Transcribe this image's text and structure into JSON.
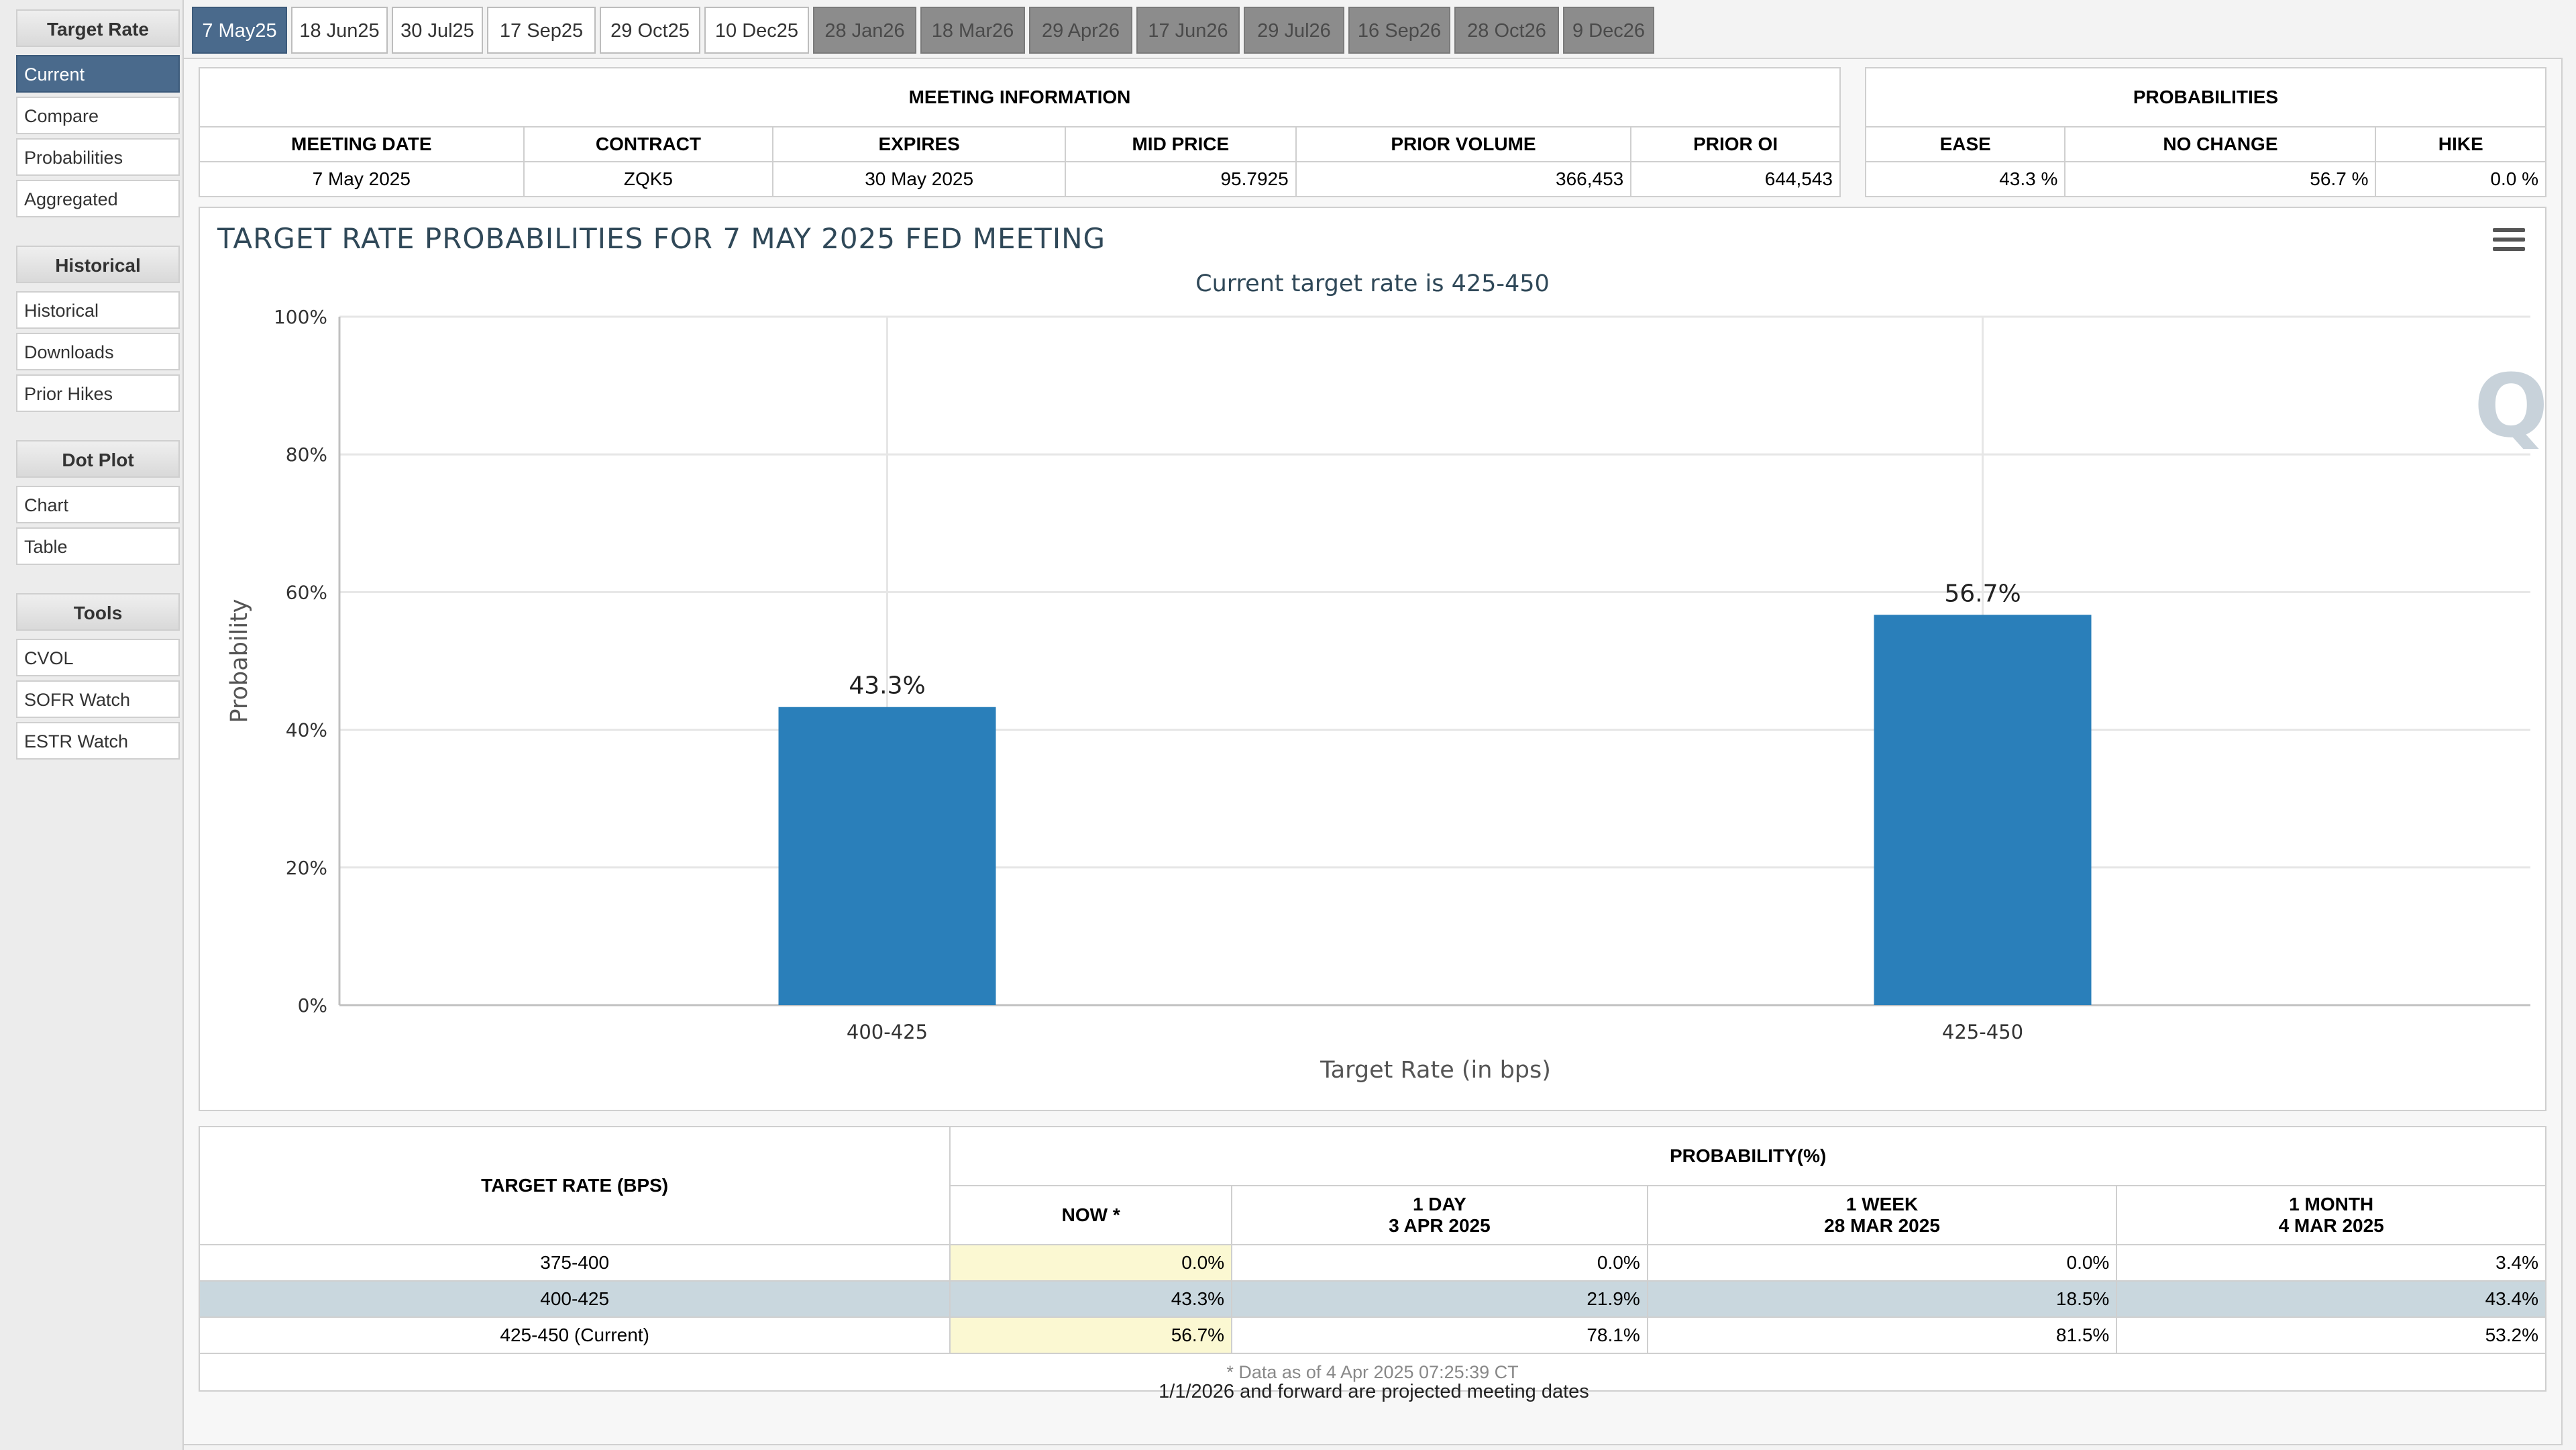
{
  "sidebar": {
    "sections": [
      {
        "title": "Target Rate",
        "items": [
          "Current",
          "Compare",
          "Probabilities",
          "Aggregated"
        ],
        "active": "Current"
      },
      {
        "title": "Historical",
        "items": [
          "Historical",
          "Downloads",
          "Prior Hikes"
        ]
      },
      {
        "title": "Dot Plot",
        "items": [
          "Chart",
          "Table"
        ]
      },
      {
        "title": "Tools",
        "items": [
          "CVOL",
          "SOFR Watch",
          "ESTR Watch"
        ]
      }
    ]
  },
  "tabs": [
    {
      "label": "7 May25",
      "state": "active"
    },
    {
      "label": "18 Jun25",
      "state": "normal"
    },
    {
      "label": "30 Jul25",
      "state": "normal"
    },
    {
      "label": "17 Sep25",
      "state": "normal"
    },
    {
      "label": "29 Oct25",
      "state": "normal"
    },
    {
      "label": "10 Dec25",
      "state": "normal"
    },
    {
      "label": "28 Jan26",
      "state": "future"
    },
    {
      "label": "18 Mar26",
      "state": "future"
    },
    {
      "label": "29 Apr26",
      "state": "future"
    },
    {
      "label": "17 Jun26",
      "state": "future"
    },
    {
      "label": "29 Jul26",
      "state": "future"
    },
    {
      "label": "16 Sep26",
      "state": "future"
    },
    {
      "label": "28 Oct26",
      "state": "future"
    },
    {
      "label": "9 Dec26",
      "state": "future"
    }
  ],
  "meeting_info": {
    "title": "MEETING INFORMATION",
    "headers": [
      "MEETING DATE",
      "CONTRACT",
      "EXPIRES",
      "MID PRICE",
      "PRIOR VOLUME",
      "PRIOR OI"
    ],
    "values": [
      "7 May 2025",
      "ZQK5",
      "30 May 2025",
      "95.7925",
      "366,453",
      "644,543"
    ]
  },
  "probabilities": {
    "title": "PROBABILITIES",
    "headers": [
      "EASE",
      "NO CHANGE",
      "HIKE"
    ],
    "values": [
      "43.3 %",
      "56.7 %",
      "0.0 %"
    ]
  },
  "chart_data": {
    "type": "bar",
    "title": "TARGET RATE PROBABILITIES FOR 7 MAY 2025 FED MEETING",
    "subtitle": "Current target rate is 425-450",
    "categories": [
      "400-425",
      "425-450"
    ],
    "values": [
      43.3,
      56.7
    ],
    "data_labels": [
      "43.3%",
      "56.7%"
    ],
    "xlabel": "Target Rate (in bps)",
    "ylabel": "Probability",
    "ylim": [
      0,
      100
    ],
    "yticks": [
      "0%",
      "20%",
      "40%",
      "60%",
      "80%",
      "100%"
    ],
    "grid": true,
    "bar_color": "#2a7fba"
  },
  "prob_table": {
    "col1_header": "TARGET RATE (BPS)",
    "group_header": "PROBABILITY(%)",
    "columns": [
      {
        "line1": "NOW *",
        "line2": ""
      },
      {
        "line1": "1 DAY",
        "line2": "3 APR 2025"
      },
      {
        "line1": "1 WEEK",
        "line2": "28 MAR 2025"
      },
      {
        "line1": "1 MONTH",
        "line2": "4 MAR 2025"
      }
    ],
    "rows": [
      {
        "rate": "375-400",
        "values": [
          "0.0%",
          "0.0%",
          "0.0%",
          "3.4%"
        ],
        "highlight": false
      },
      {
        "rate": "400-425",
        "values": [
          "43.3%",
          "21.9%",
          "18.5%",
          "43.4%"
        ],
        "highlight": true
      },
      {
        "rate": "425-450 (Current)",
        "values": [
          "56.7%",
          "78.1%",
          "81.5%",
          "53.2%"
        ],
        "highlight": false
      }
    ],
    "footnote": "* Data as of 4 Apr 2025 07:25:39 CT"
  },
  "projected_note": "1/1/2026 and forward are projected meeting dates"
}
